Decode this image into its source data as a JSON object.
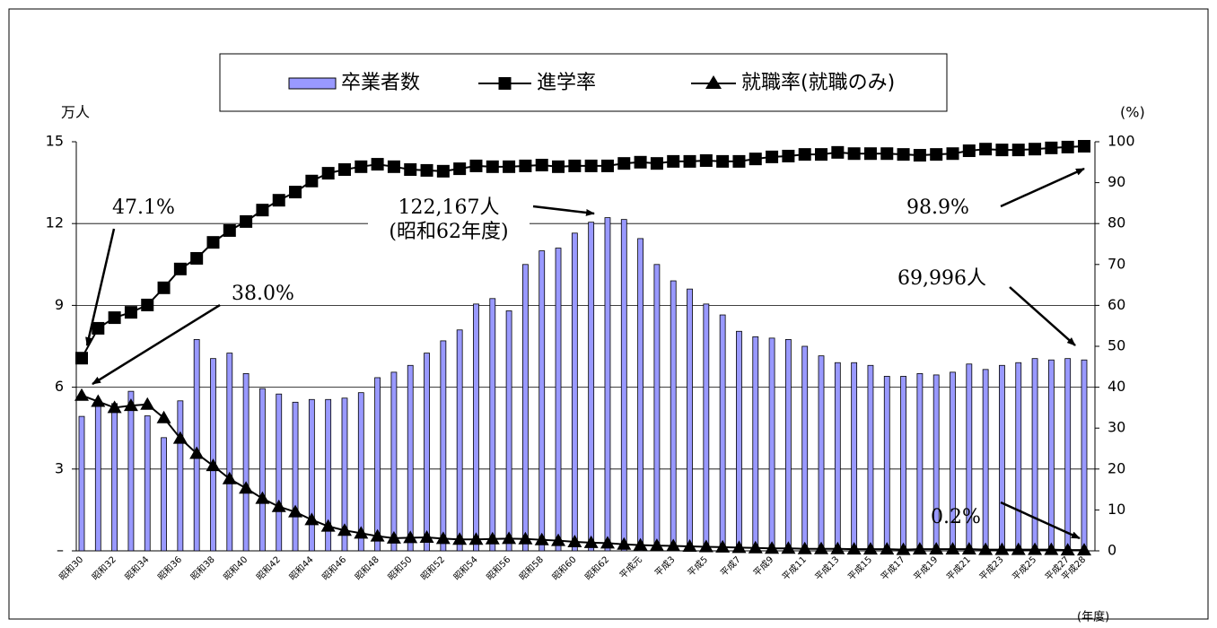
{
  "chart_data": {
    "type": "bar",
    "categories": [
      "昭和30",
      null,
      "昭和32",
      null,
      "昭和34",
      null,
      "昭和36",
      null,
      "昭和38",
      null,
      "昭和40",
      null,
      "昭和42",
      null,
      "昭和44",
      null,
      "昭和46",
      null,
      "昭和48",
      null,
      "昭和50",
      null,
      "昭和52",
      null,
      "昭和54",
      null,
      "昭和56",
      null,
      "昭和58",
      null,
      "昭和60",
      null,
      "昭和62",
      null,
      "平成元",
      null,
      "平成3",
      null,
      "平成5",
      null,
      "平成7",
      null,
      "平成9",
      null,
      "平成11",
      null,
      "平成13",
      null,
      "平成15",
      null,
      "平成17",
      null,
      "平成19",
      null,
      "平成21",
      null,
      "平成23",
      null,
      "平成25",
      null,
      "平成27",
      "平成28"
    ],
    "x_label": "(年度)",
    "y_label": "万人",
    "y2_label": "(%)",
    "series": [
      {
        "name": "卒業者数",
        "type": "bar",
        "color": "#9999ff",
        "values": [
          4.93,
          5.5,
          5.4,
          5.85,
          4.95,
          4.15,
          5.5,
          7.75,
          7.05,
          7.25,
          6.5,
          5.95,
          5.75,
          5.45,
          5.55,
          5.55,
          5.6,
          5.8,
          6.35,
          6.55,
          6.8,
          7.25,
          7.7,
          8.1,
          9.05,
          9.25,
          8.8,
          10.5,
          11.0,
          11.1,
          11.65,
          12.05,
          12.2167,
          12.15,
          11.45,
          10.5,
          9.9,
          9.6,
          9.05,
          8.65,
          8.05,
          7.85,
          7.8,
          7.75,
          7.5,
          7.15,
          6.9,
          6.9,
          6.8,
          6.4,
          6.4,
          6.5,
          6.45,
          6.55,
          6.85,
          6.65,
          6.8,
          6.9,
          7.05,
          7.0,
          7.05,
          6.9996
        ]
      },
      {
        "name": "進学率",
        "type": "line",
        "marker": "square",
        "axis": "y2",
        "color": "#000000",
        "values": [
          47.1,
          54.4,
          57.0,
          58.3,
          60.1,
          64.3,
          68.9,
          71.5,
          75.4,
          78.3,
          80.5,
          83.3,
          85.7,
          87.7,
          90.4,
          92.3,
          93.2,
          93.9,
          94.5,
          93.9,
          93.2,
          93.0,
          92.8,
          93.4,
          94.1,
          93.9,
          93.9,
          94.1,
          94.3,
          93.9,
          94.1,
          94.1,
          94.1,
          94.7,
          95.0,
          94.7,
          95.2,
          95.2,
          95.4,
          95.2,
          95.2,
          95.8,
          96.3,
          96.5,
          96.9,
          96.9,
          97.4,
          97.1,
          97.1,
          97.1,
          96.9,
          96.7,
          96.9,
          97.1,
          97.8,
          98.2,
          98.0,
          98.0,
          98.2,
          98.5,
          98.7,
          98.9
        ]
      },
      {
        "name": "就職率(就職のみ)",
        "type": "line",
        "marker": "triangle",
        "axis": "y2",
        "color": "#000000",
        "values": [
          38.0,
          36.5,
          35.0,
          35.5,
          35.8,
          32.5,
          27.5,
          23.8,
          20.8,
          17.6,
          15.3,
          12.8,
          10.8,
          9.5,
          7.6,
          6.0,
          5.0,
          4.3,
          3.6,
          3.1,
          3.2,
          3.3,
          3.0,
          2.8,
          2.8,
          2.9,
          3.0,
          2.9,
          2.7,
          2.5,
          2.2,
          2.0,
          1.9,
          1.6,
          1.4,
          1.3,
          1.2,
          1.1,
          1.0,
          0.9,
          0.8,
          0.7,
          0.6,
          0.6,
          0.5,
          0.5,
          0.5,
          0.4,
          0.4,
          0.4,
          0.3,
          0.4,
          0.4,
          0.4,
          0.4,
          0.3,
          0.3,
          0.3,
          0.3,
          0.3,
          0.2,
          0.2
        ]
      }
    ],
    "ylim": [
      0,
      15
    ],
    "yticks": [
      {
        "value": 0,
        "label": "–"
      },
      3,
      6,
      9,
      12,
      15
    ],
    "y2lim": [
      0,
      100
    ],
    "y2ticks": [
      0,
      10,
      20,
      30,
      40,
      50,
      60,
      70,
      80,
      90,
      100
    ],
    "grid": true,
    "legend": "top",
    "annotations": [
      {
        "text": "47.1%"
      },
      {
        "text": "38.0%"
      },
      {
        "text": "122,167人"
      },
      {
        "text": "(昭和62年度)"
      },
      {
        "text": "98.9%"
      },
      {
        "text": "69,996人"
      },
      {
        "text": "0.2%"
      }
    ]
  }
}
